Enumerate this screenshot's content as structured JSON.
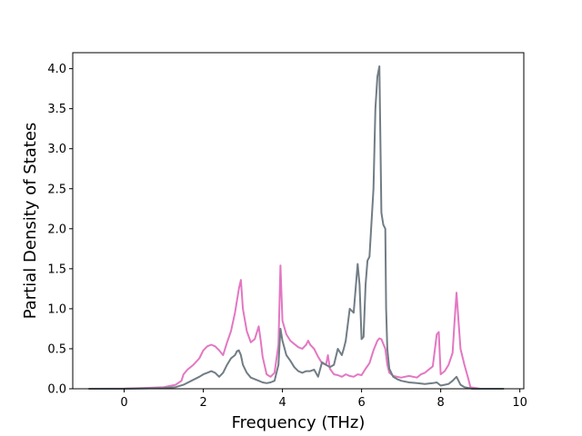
{
  "chart_data": {
    "type": "line",
    "title": "",
    "xlabel": "Frequency (THz)",
    "ylabel": "Partial Density of States",
    "xlim": [
      -1.3,
      10.1
    ],
    "ylim": [
      0.0,
      4.2
    ],
    "grid": false,
    "legend": "none",
    "xticks": [
      0,
      2,
      4,
      6,
      8,
      10
    ],
    "xtick_labels": [
      "0",
      "2",
      "4",
      "6",
      "8",
      "10"
    ],
    "yticks": [
      0.0,
      0.5,
      1.0,
      1.5,
      2.0,
      2.5,
      3.0,
      3.5,
      4.0
    ],
    "ytick_labels": [
      "0.0",
      "0.5",
      "1.0",
      "1.5",
      "2.0",
      "2.5",
      "3.0",
      "3.5",
      "4.0"
    ],
    "series": [
      {
        "color": "#e377c2",
        "x": [
          -0.9,
          0.0,
          0.5,
          1.0,
          1.3,
          1.45,
          1.5,
          1.6,
          1.75,
          1.9,
          2.0,
          2.1,
          2.2,
          2.3,
          2.4,
          2.5,
          2.6,
          2.7,
          2.8,
          2.9,
          2.95,
          3.0,
          3.1,
          3.2,
          3.3,
          3.4,
          3.45,
          3.5,
          3.6,
          3.7,
          3.8,
          3.9,
          3.95,
          4.0,
          4.1,
          4.2,
          4.3,
          4.4,
          4.5,
          4.6,
          4.65,
          4.7,
          4.8,
          4.9,
          5.0,
          5.1,
          5.15,
          5.2,
          5.3,
          5.4,
          5.5,
          5.6,
          5.7,
          5.8,
          5.9,
          6.0,
          6.1,
          6.2,
          6.3,
          6.4,
          6.45,
          6.5,
          6.6,
          6.65,
          6.7,
          6.8,
          6.9,
          7.0,
          7.2,
          7.4,
          7.5,
          7.6,
          7.8,
          7.9,
          7.95,
          8.0,
          8.1,
          8.2,
          8.3,
          8.35,
          8.4,
          8.5,
          8.6,
          8.7,
          8.75,
          9.0
        ],
        "y": [
          0.0,
          0.002,
          0.01,
          0.02,
          0.05,
          0.1,
          0.18,
          0.24,
          0.3,
          0.38,
          0.48,
          0.53,
          0.55,
          0.53,
          0.48,
          0.42,
          0.58,
          0.72,
          0.95,
          1.25,
          1.36,
          1.0,
          0.72,
          0.58,
          0.62,
          0.78,
          0.6,
          0.4,
          0.18,
          0.15,
          0.2,
          0.55,
          1.54,
          0.85,
          0.68,
          0.6,
          0.56,
          0.52,
          0.5,
          0.55,
          0.6,
          0.55,
          0.5,
          0.4,
          0.32,
          0.3,
          0.42,
          0.25,
          0.18,
          0.17,
          0.15,
          0.18,
          0.16,
          0.15,
          0.18,
          0.17,
          0.25,
          0.32,
          0.48,
          0.6,
          0.63,
          0.62,
          0.5,
          0.3,
          0.2,
          0.16,
          0.15,
          0.14,
          0.16,
          0.14,
          0.18,
          0.2,
          0.28,
          0.68,
          0.71,
          0.18,
          0.22,
          0.3,
          0.45,
          0.85,
          1.2,
          0.5,
          0.3,
          0.12,
          0.02,
          0.0
        ]
      },
      {
        "color": "#717d85",
        "x": [
          -0.9,
          0.0,
          0.5,
          1.0,
          1.3,
          1.5,
          1.7,
          1.9,
          2.0,
          2.1,
          2.2,
          2.3,
          2.4,
          2.5,
          2.6,
          2.7,
          2.8,
          2.85,
          2.9,
          2.95,
          3.0,
          3.1,
          3.2,
          3.3,
          3.4,
          3.5,
          3.6,
          3.7,
          3.8,
          3.9,
          3.95,
          4.0,
          4.1,
          4.2,
          4.3,
          4.4,
          4.5,
          4.6,
          4.7,
          4.8,
          4.9,
          5.0,
          5.1,
          5.2,
          5.3,
          5.4,
          5.5,
          5.55,
          5.6,
          5.7,
          5.8,
          5.9,
          5.95,
          6.0,
          6.05,
          6.1,
          6.15,
          6.2,
          6.3,
          6.35,
          6.4,
          6.45,
          6.5,
          6.55,
          6.6,
          6.62,
          6.65,
          6.7,
          6.8,
          6.9,
          7.0,
          7.2,
          7.4,
          7.6,
          7.8,
          7.9,
          8.0,
          8.1,
          8.2,
          8.3,
          8.4,
          8.5,
          8.6,
          8.7,
          8.8,
          9.0,
          9.3,
          9.6
        ],
        "y": [
          0.0,
          0.0,
          0.005,
          0.01,
          0.02,
          0.05,
          0.1,
          0.15,
          0.18,
          0.2,
          0.22,
          0.2,
          0.15,
          0.2,
          0.3,
          0.38,
          0.42,
          0.47,
          0.48,
          0.42,
          0.3,
          0.2,
          0.14,
          0.12,
          0.1,
          0.08,
          0.07,
          0.08,
          0.1,
          0.3,
          0.75,
          0.6,
          0.42,
          0.35,
          0.27,
          0.22,
          0.2,
          0.22,
          0.22,
          0.24,
          0.15,
          0.33,
          0.3,
          0.27,
          0.3,
          0.5,
          0.42,
          0.5,
          0.6,
          1.0,
          0.95,
          1.56,
          1.3,
          0.62,
          0.65,
          1.3,
          1.6,
          1.65,
          2.5,
          3.5,
          3.9,
          4.03,
          2.2,
          2.05,
          2.0,
          1.0,
          0.5,
          0.25,
          0.15,
          0.12,
          0.1,
          0.08,
          0.07,
          0.06,
          0.07,
          0.08,
          0.04,
          0.05,
          0.06,
          0.1,
          0.15,
          0.05,
          0.02,
          0.01,
          0.0,
          0.0,
          0.0,
          0.0
        ]
      }
    ]
  }
}
